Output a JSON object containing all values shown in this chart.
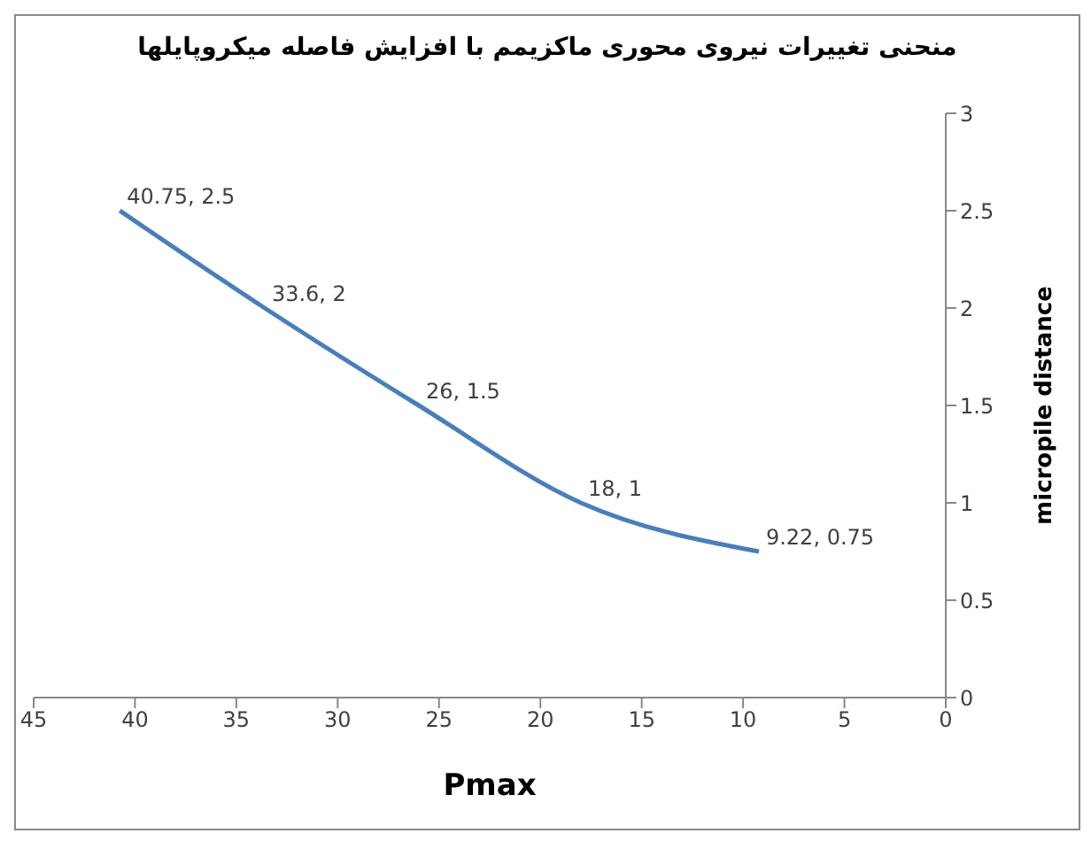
{
  "chart_data": {
    "type": "line",
    "title": "منحنی تغییرات نیروی محوری ماکزیمم با افزایش فاصله میکروپایلها",
    "xlabel": "Pmax",
    "ylabel": "micropile distance",
    "x": [
      40.75,
      33.6,
      26,
      18,
      9.22
    ],
    "series": [
      {
        "color": "#4a7ebb",
        "values": [
          2.5,
          2,
          1.5,
          1,
          0.75
        ],
        "value_labels": [
          "40.75, 2.5",
          "33.6, 2",
          "26, 1.5",
          "18, 1",
          "9.22, 0.75"
        ]
      }
    ],
    "xlim": [
      45,
      0
    ],
    "xticks": [
      45,
      40,
      35,
      30,
      25,
      20,
      15,
      10,
      5,
      0
    ],
    "ylim": [
      0,
      3
    ],
    "yticks": [
      0,
      0.5,
      1,
      1.5,
      2,
      2.5,
      3
    ],
    "grid": false,
    "marker": "none",
    "line_style": "solid"
  }
}
